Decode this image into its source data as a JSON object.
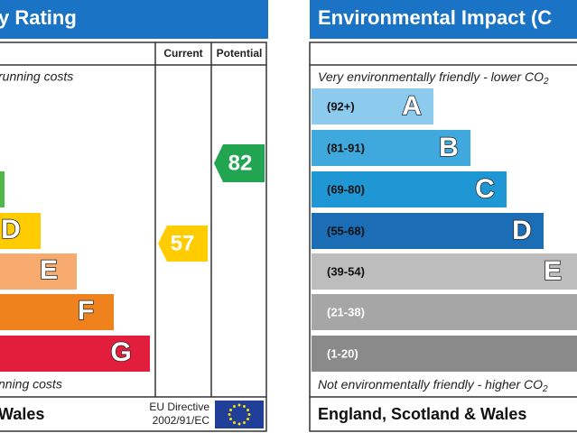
{
  "energy": {
    "title": "y Rating",
    "current_header": "Current",
    "potential_header": "Potential",
    "top_note": "running costs",
    "bands": [
      "D",
      "E",
      "F",
      "G"
    ],
    "current": "57",
    "potential": "82",
    "bottom_note": "nning costs",
    "footer": "Wales",
    "eu_line1": "EU Directive",
    "eu_line2": "2002/91/EC"
  },
  "environment": {
    "title": "Environmental Impact (C",
    "top_note": "Very environmentally friendly - lower CO",
    "subscript": "2",
    "bands": [
      {
        "range": "(92+)",
        "letter": "A"
      },
      {
        "range": "(81-91)",
        "letter": "B"
      },
      {
        "range": "(69-80)",
        "letter": "C"
      },
      {
        "range": "(55-68)",
        "letter": "D"
      },
      {
        "range": "(39-54)",
        "letter": "E"
      },
      {
        "range": "(21-38)"
      },
      {
        "range": "(1-20)"
      }
    ],
    "bottom_note": "Not environmentally friendly - higher CO",
    "footer": "England, Scotland & Wales"
  }
}
